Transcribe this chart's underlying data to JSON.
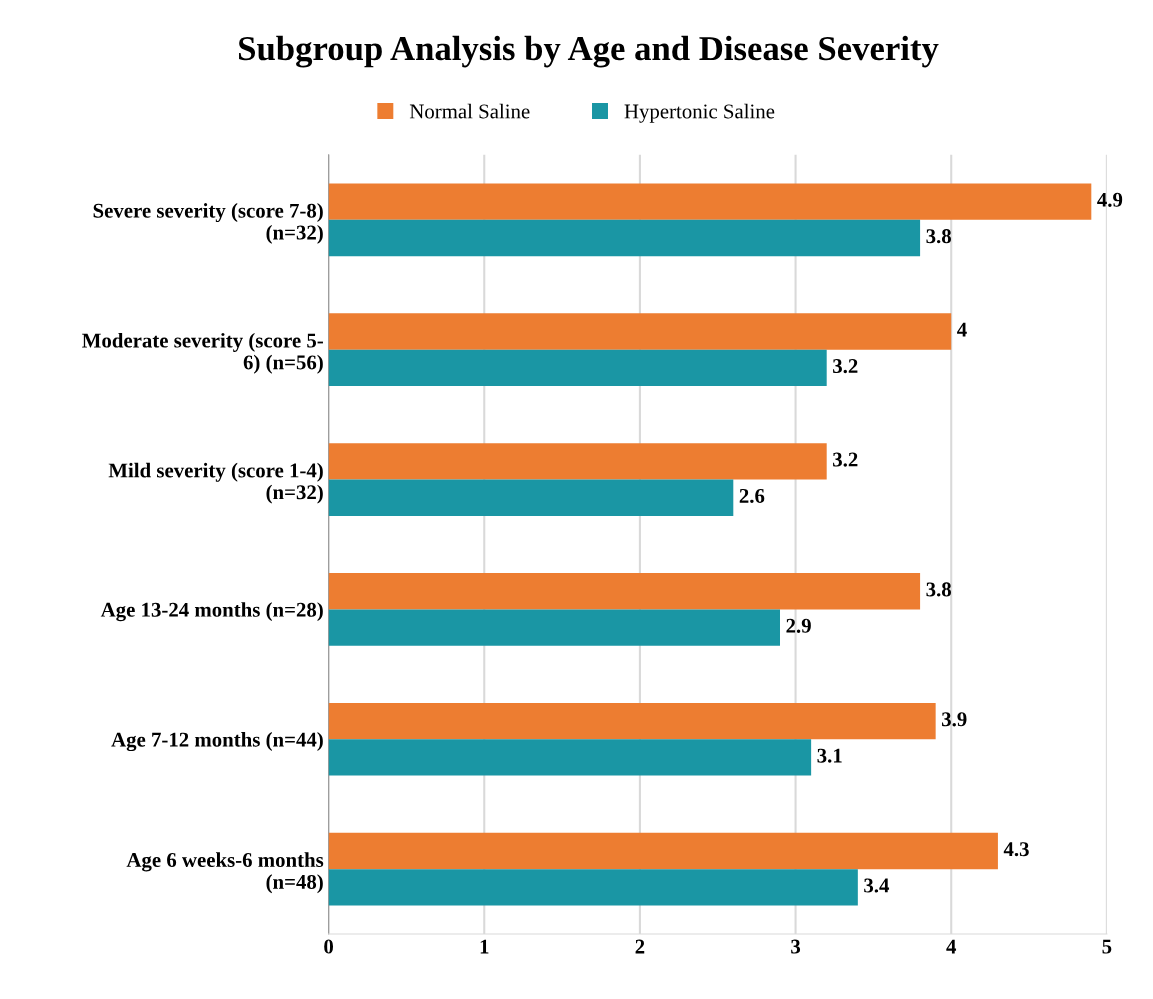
{
  "chart_data": {
    "type": "bar",
    "orientation": "horizontal",
    "title": "Subgroup Analysis by Age and Disease Severity",
    "categories": [
      "Severe severity (score 7-8)\n(n=32)",
      "Moderate severity (score 5-\n6) (n=56)",
      "Mild severity (score 1-4)\n(n=32)",
      "Age 13-24 months (n=28)",
      "Age 7-12 months (n=44)",
      "Age 6 weeks-6 months\n(n=48)"
    ],
    "series": [
      {
        "name": "Normal Saline",
        "color": "#ed7d31",
        "values": [
          4.9,
          4,
          3.2,
          3.8,
          3.9,
          4.3
        ]
      },
      {
        "name": "Hypertonic Saline",
        "color": "#1a96a4",
        "values": [
          3.8,
          3.2,
          2.6,
          2.9,
          3.1,
          3.4
        ]
      }
    ],
    "xlim": [
      0,
      5
    ],
    "xticks": [
      0,
      1,
      2,
      3,
      4,
      5
    ],
    "grid": "x",
    "legend": "top",
    "data_labels": true
  }
}
